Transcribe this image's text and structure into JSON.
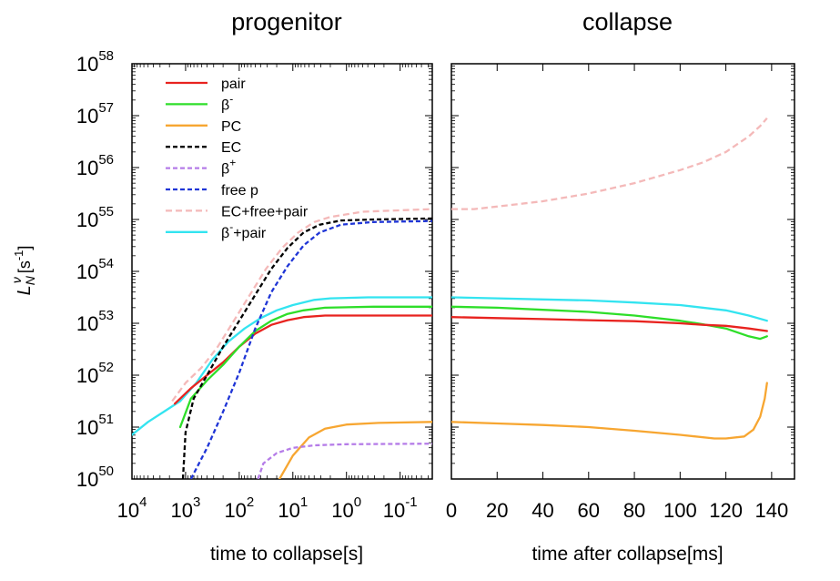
{
  "chart_data": {
    "type": "line",
    "ylabel": {
      "base": "L",
      "sub": "N",
      "sup": "ν",
      "unit": "[s",
      "unit_sup": "-1",
      "unit_end": "]"
    },
    "y_log_range_exponent": [
      50,
      58
    ],
    "y_ticks": [
      {
        "base": "10",
        "exp": "50"
      },
      {
        "base": "10",
        "exp": "51"
      },
      {
        "base": "10",
        "exp": "52"
      },
      {
        "base": "10",
        "exp": "53"
      },
      {
        "base": "10",
        "exp": "54"
      },
      {
        "base": "10",
        "exp": "55"
      },
      {
        "base": "10",
        "exp": "56"
      },
      {
        "base": "10",
        "exp": "57"
      },
      {
        "base": "10",
        "exp": "58"
      }
    ],
    "legend_position": "top-left of left panel",
    "grid": false,
    "legend": [
      {
        "key": "pair",
        "label": "pair",
        "sup": ""
      },
      {
        "key": "beta_minus",
        "label": "β",
        "sup": "-"
      },
      {
        "key": "pc",
        "label": "PC",
        "sup": ""
      },
      {
        "key": "ec",
        "label": "EC",
        "sup": ""
      },
      {
        "key": "beta_plus",
        "label": "β",
        "sup": "+"
      },
      {
        "key": "free_p",
        "label": "free p",
        "sup": ""
      },
      {
        "key": "ec_free_pair",
        "label": "EC+free+pair",
        "sup": ""
      },
      {
        "key": "beta_minus_pair",
        "label": "β",
        "sup": "-",
        "suffix": "+pair"
      }
    ],
    "styles": {
      "pair": {
        "color": "#e8231f",
        "dash": ""
      },
      "beta_minus": {
        "color": "#2ede29",
        "dash": ""
      },
      "pc": {
        "color": "#f7a631",
        "dash": ""
      },
      "ec": {
        "color": "#000000",
        "dash": "5,3"
      },
      "beta_plus": {
        "color": "#b57ce8",
        "dash": "5,3"
      },
      "free_p": {
        "color": "#1f35d6",
        "dash": "5,3"
      },
      "ec_free_pair": {
        "color": "#f4b9b9",
        "dash": "7,4"
      },
      "beta_minus_pair": {
        "color": "#33e4f0",
        "dash": ""
      }
    },
    "panels": [
      {
        "title": "progenitor",
        "xlabel": "time to collapse[s]",
        "x_scale": "log-reversed",
        "x_log_range_exponent": [
          4,
          -1.6
        ],
        "x_ticks": [
          {
            "base": "10",
            "exp": "4",
            "value": 4
          },
          {
            "base": "10",
            "exp": "3",
            "value": 3
          },
          {
            "base": "10",
            "exp": "2",
            "value": 2
          },
          {
            "base": "10",
            "exp": "1",
            "value": 1
          },
          {
            "base": "10",
            "exp": "0",
            "value": 0
          },
          {
            "base": "10",
            "exp": "-1",
            "value": -1
          }
        ],
        "series": [
          {
            "key": "beta_minus_pair",
            "points": [
              [
                4.0,
                50.85
              ],
              [
                3.7,
                51.1
              ],
              [
                3.4,
                51.3
              ],
              [
                3.1,
                51.5
              ],
              [
                2.8,
                51.85
              ],
              [
                2.5,
                52.3
              ],
              [
                2.2,
                52.65
              ],
              [
                1.9,
                52.9
              ],
              [
                1.6,
                53.1
              ],
              [
                1.3,
                53.25
              ],
              [
                1.0,
                53.35
              ],
              [
                0.6,
                53.45
              ],
              [
                0.3,
                53.48
              ],
              [
                -0.4,
                53.5
              ],
              [
                -1.6,
                53.5
              ]
            ]
          },
          {
            "key": "pair",
            "points": [
              [
                3.2,
                51.45
              ],
              [
                2.9,
                51.75
              ],
              [
                2.6,
                52.0
              ],
              [
                2.3,
                52.25
              ],
              [
                2.0,
                52.55
              ],
              [
                1.7,
                52.8
              ],
              [
                1.4,
                52.97
              ],
              [
                1.1,
                53.06
              ],
              [
                0.8,
                53.12
              ],
              [
                0.4,
                53.15
              ],
              [
                -0.5,
                53.15
              ],
              [
                -1.6,
                53.15
              ]
            ]
          },
          {
            "key": "beta_minus",
            "points": [
              [
                3.1,
                51.0
              ],
              [
                2.9,
                51.55
              ],
              [
                2.6,
                51.9
              ],
              [
                2.3,
                52.2
              ],
              [
                2.0,
                52.55
              ],
              [
                1.7,
                52.85
              ],
              [
                1.4,
                53.05
              ],
              [
                1.1,
                53.18
              ],
              [
                0.8,
                53.25
              ],
              [
                0.4,
                53.3
              ],
              [
                -0.5,
                53.32
              ],
              [
                -1.6,
                53.32
              ]
            ]
          },
          {
            "key": "ec_free_pair",
            "points": [
              [
                3.25,
                51.5
              ],
              [
                3.0,
                51.85
              ],
              [
                2.7,
                52.15
              ],
              [
                2.4,
                52.55
              ],
              [
                2.1,
                53.05
              ],
              [
                1.8,
                53.55
              ],
              [
                1.5,
                54.05
              ],
              [
                1.2,
                54.45
              ],
              [
                0.9,
                54.75
              ],
              [
                0.6,
                54.95
              ],
              [
                0.3,
                55.05
              ],
              [
                -0.3,
                55.15
              ],
              [
                -1.6,
                55.2
              ]
            ]
          },
          {
            "key": "ec",
            "points": [
              [
                3.05,
                50.0
              ],
              [
                3.0,
                50.9
              ],
              [
                2.85,
                51.55
              ],
              [
                2.6,
                52.0
              ],
              [
                2.3,
                52.55
              ],
              [
                2.0,
                53.05
              ],
              [
                1.7,
                53.55
              ],
              [
                1.4,
                54.05
              ],
              [
                1.1,
                54.45
              ],
              [
                0.8,
                54.75
              ],
              [
                0.5,
                54.9
              ],
              [
                0.1,
                54.98
              ],
              [
                -0.5,
                55.0
              ],
              [
                -1.6,
                55.02
              ]
            ]
          },
          {
            "key": "free_p",
            "points": [
              [
                2.9,
                50.0
              ],
              [
                2.6,
                50.6
              ],
              [
                2.3,
                51.3
              ],
              [
                2.0,
                52.05
              ],
              [
                1.7,
                52.9
              ],
              [
                1.4,
                53.6
              ],
              [
                1.1,
                54.1
              ],
              [
                0.8,
                54.5
              ],
              [
                0.5,
                54.75
              ],
              [
                0.1,
                54.9
              ],
              [
                -0.5,
                54.95
              ],
              [
                -1.6,
                54.97
              ]
            ]
          },
          {
            "key": "pc",
            "points": [
              [
                1.25,
                50.0
              ],
              [
                1.0,
                50.45
              ],
              [
                0.7,
                50.8
              ],
              [
                0.4,
                50.97
              ],
              [
                0.0,
                51.05
              ],
              [
                -0.6,
                51.08
              ],
              [
                -1.6,
                51.1
              ]
            ]
          },
          {
            "key": "beta_plus",
            "points": [
              [
                1.65,
                50.0
              ],
              [
                1.55,
                50.3
              ],
              [
                1.3,
                50.5
              ],
              [
                1.0,
                50.6
              ],
              [
                0.6,
                50.65
              ],
              [
                0.0,
                50.67
              ],
              [
                -1.6,
                50.68
              ]
            ]
          }
        ]
      },
      {
        "title": "collapse",
        "xlabel": "time after collapse[ms]",
        "x_scale": "linear",
        "xlim": [
          0,
          150
        ],
        "x_ticks": [
          {
            "base": "0",
            "exp": "",
            "value": 0
          },
          {
            "base": "20",
            "exp": "",
            "value": 20
          },
          {
            "base": "40",
            "exp": "",
            "value": 40
          },
          {
            "base": "60",
            "exp": "",
            "value": 60
          },
          {
            "base": "80",
            "exp": "",
            "value": 80
          },
          {
            "base": "100",
            "exp": "",
            "value": 100
          },
          {
            "base": "120",
            "exp": "",
            "value": 120
          },
          {
            "base": "140",
            "exp": "",
            "value": 140
          }
        ],
        "series": [
          {
            "key": "ec_free_pair",
            "points": [
              [
                0,
                55.2
              ],
              [
                10,
                55.2
              ],
              [
                20,
                55.25
              ],
              [
                40,
                55.35
              ],
              [
                60,
                55.5
              ],
              [
                80,
                55.7
              ],
              [
                100,
                55.95
              ],
              [
                110,
                56.1
              ],
              [
                120,
                56.3
              ],
              [
                130,
                56.6
              ],
              [
                135,
                56.8
              ],
              [
                138,
                56.95
              ]
            ]
          },
          {
            "key": "beta_minus_pair",
            "points": [
              [
                0,
                53.5
              ],
              [
                20,
                53.48
              ],
              [
                40,
                53.46
              ],
              [
                60,
                53.44
              ],
              [
                80,
                53.4
              ],
              [
                100,
                53.35
              ],
              [
                120,
                53.25
              ],
              [
                130,
                53.15
              ],
              [
                138,
                53.05
              ]
            ]
          },
          {
            "key": "beta_minus",
            "points": [
              [
                0,
                53.32
              ],
              [
                20,
                53.3
              ],
              [
                40,
                53.26
              ],
              [
                60,
                53.22
              ],
              [
                80,
                53.15
              ],
              [
                100,
                53.05
              ],
              [
                110,
                52.98
              ],
              [
                120,
                52.9
              ],
              [
                130,
                52.75
              ],
              [
                135,
                52.7
              ],
              [
                138,
                52.75
              ]
            ]
          },
          {
            "key": "pair",
            "points": [
              [
                0,
                53.12
              ],
              [
                20,
                53.1
              ],
              [
                40,
                53.08
              ],
              [
                60,
                53.06
              ],
              [
                80,
                53.04
              ],
              [
                100,
                53.0
              ],
              [
                110,
                52.97
              ],
              [
                120,
                52.95
              ],
              [
                130,
                52.9
              ],
              [
                138,
                52.85
              ]
            ]
          },
          {
            "key": "pc",
            "points": [
              [
                0,
                51.1
              ],
              [
                20,
                51.07
              ],
              [
                40,
                51.04
              ],
              [
                60,
                51.0
              ],
              [
                80,
                50.93
              ],
              [
                100,
                50.85
              ],
              [
                115,
                50.78
              ],
              [
                120,
                50.78
              ],
              [
                128,
                50.82
              ],
              [
                132,
                50.95
              ],
              [
                135,
                51.2
              ],
              [
                137,
                51.55
              ],
              [
                138,
                51.85
              ]
            ]
          }
        ]
      }
    ]
  }
}
